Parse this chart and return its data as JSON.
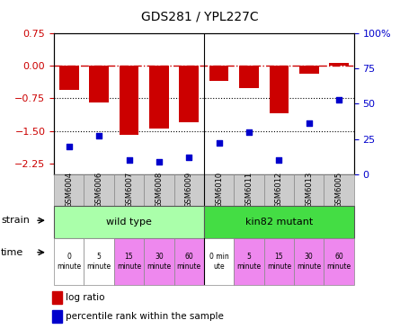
{
  "title": "GDS281 / YPL227C",
  "samples": [
    "GSM6004",
    "GSM6006",
    "GSM6007",
    "GSM6008",
    "GSM6009",
    "GSM6010",
    "GSM6011",
    "GSM6012",
    "GSM6013",
    "GSM6005"
  ],
  "log_ratio": [
    -0.55,
    -0.85,
    -1.6,
    -1.45,
    -1.3,
    -0.35,
    -0.52,
    -1.1,
    -0.18,
    0.05
  ],
  "percentile": [
    20,
    27,
    10,
    9,
    12,
    22,
    30,
    10,
    36,
    53
  ],
  "ylim_left": [
    -2.5,
    0.75
  ],
  "ylim_right": [
    0,
    100
  ],
  "yticks_left": [
    0.75,
    0,
    -0.75,
    -1.5,
    -2.25
  ],
  "yticks_right": [
    100,
    75,
    50,
    25,
    0
  ],
  "bar_color": "#cc0000",
  "dot_color": "#0000cc",
  "strain_wt_color": "#aaffaa",
  "strain_mut_color": "#44dd44",
  "strain_labels": [
    "wild type",
    "kin82 mutant"
  ],
  "time_labels_wt": [
    "0\nminute",
    "5\nminute",
    "15\nminute",
    "30\nminute",
    "60\nminute"
  ],
  "time_labels_mut": [
    "0 min\nute",
    "5\nminute",
    "15\nminute",
    "30\nminute",
    "60\nminute"
  ],
  "time_colors_wt": [
    "#ffffff",
    "#ffffff",
    "#ee88ee",
    "#ee88ee",
    "#ee88ee"
  ],
  "time_colors_mut": [
    "#ffffff",
    "#ee88ee",
    "#ee88ee",
    "#ee88ee",
    "#ee88ee"
  ],
  "n_wt": 5,
  "n_mut": 5,
  "bg_color": "#ffffff",
  "tick_label_color_left": "#cc0000",
  "tick_label_color_right": "#0000cc",
  "xticklabel_bg": "#cccccc"
}
